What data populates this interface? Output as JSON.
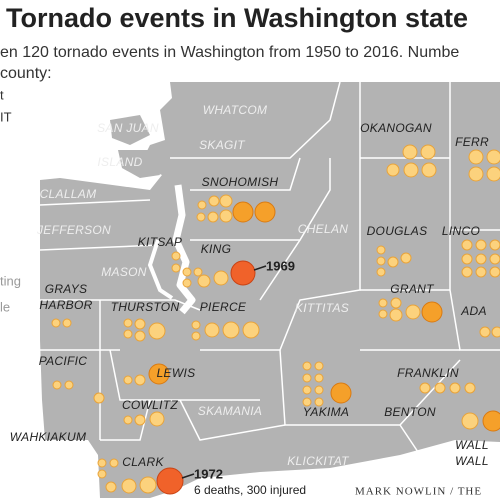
{
  "header": {
    "title": "Tornado events in Washington state",
    "subtitle": [
      "en 120 tornado events in Washington from 1950 to 2016. Numbe",
      "county:"
    ]
  },
  "legend_fragments": [
    "t",
    "IT",
    "ting",
    "le"
  ],
  "counties": [
    {
      "lines": [
        "SAN JUAN"
      ],
      "events": false
    },
    {
      "lines": [
        "WHATCOM"
      ],
      "events": false
    },
    {
      "lines": [
        "OKANOGAN"
      ],
      "events": true
    },
    {
      "lines": [
        "FERR"
      ],
      "events": true
    },
    {
      "lines": [
        "SKAGIT"
      ],
      "events": false
    },
    {
      "lines": [
        "ISLAND"
      ],
      "events": false
    },
    {
      "lines": [
        "SNOHOMISH"
      ],
      "events": true
    },
    {
      "lines": [
        "CLALLAM"
      ],
      "events": false
    },
    {
      "lines": [
        "JEFFERSON"
      ],
      "events": false
    },
    {
      "lines": [
        "KITSAP"
      ],
      "events": true
    },
    {
      "lines": [
        "CHELAN"
      ],
      "events": false
    },
    {
      "lines": [
        "DOUGLAS"
      ],
      "events": true
    },
    {
      "lines": [
        "LINCO"
      ],
      "events": true
    },
    {
      "lines": [
        "KING"
      ],
      "events": true
    },
    {
      "lines": [
        "MASON"
      ],
      "events": false
    },
    {
      "lines": [
        "GRAYS",
        "HARBOR"
      ],
      "events": true
    },
    {
      "lines": [
        "THURSTON"
      ],
      "events": true
    },
    {
      "lines": [
        "PIERCE"
      ],
      "events": true
    },
    {
      "lines": [
        "KITTITAS"
      ],
      "events": false
    },
    {
      "lines": [
        "GRANT"
      ],
      "events": true
    },
    {
      "lines": [
        "ADA"
      ],
      "events": true
    },
    {
      "lines": [
        "PACIFIC"
      ],
      "events": true
    },
    {
      "lines": [
        "LEWIS"
      ],
      "events": true
    },
    {
      "lines": [
        "FRANKLIN"
      ],
      "events": true
    },
    {
      "lines": [
        "COWLITZ"
      ],
      "events": true
    },
    {
      "lines": [
        "SKAMANIA"
      ],
      "events": false
    },
    {
      "lines": [
        "YAKIMA"
      ],
      "events": true
    },
    {
      "lines": [
        "BENTON"
      ],
      "events": true
    },
    {
      "lines": [
        "WALL",
        "WALL"
      ],
      "events": true
    },
    {
      "lines": [
        "WAHKIAKUM"
      ],
      "events": true
    },
    {
      "lines": [
        "CLARK"
      ],
      "events": true
    },
    {
      "lines": [
        "KLICKITAT"
      ],
      "events": false
    }
  ],
  "annotations": [
    "1969",
    "1972",
    "6 deaths, 300 injured"
  ],
  "credit": "MARK NOWLIN / THE"
}
